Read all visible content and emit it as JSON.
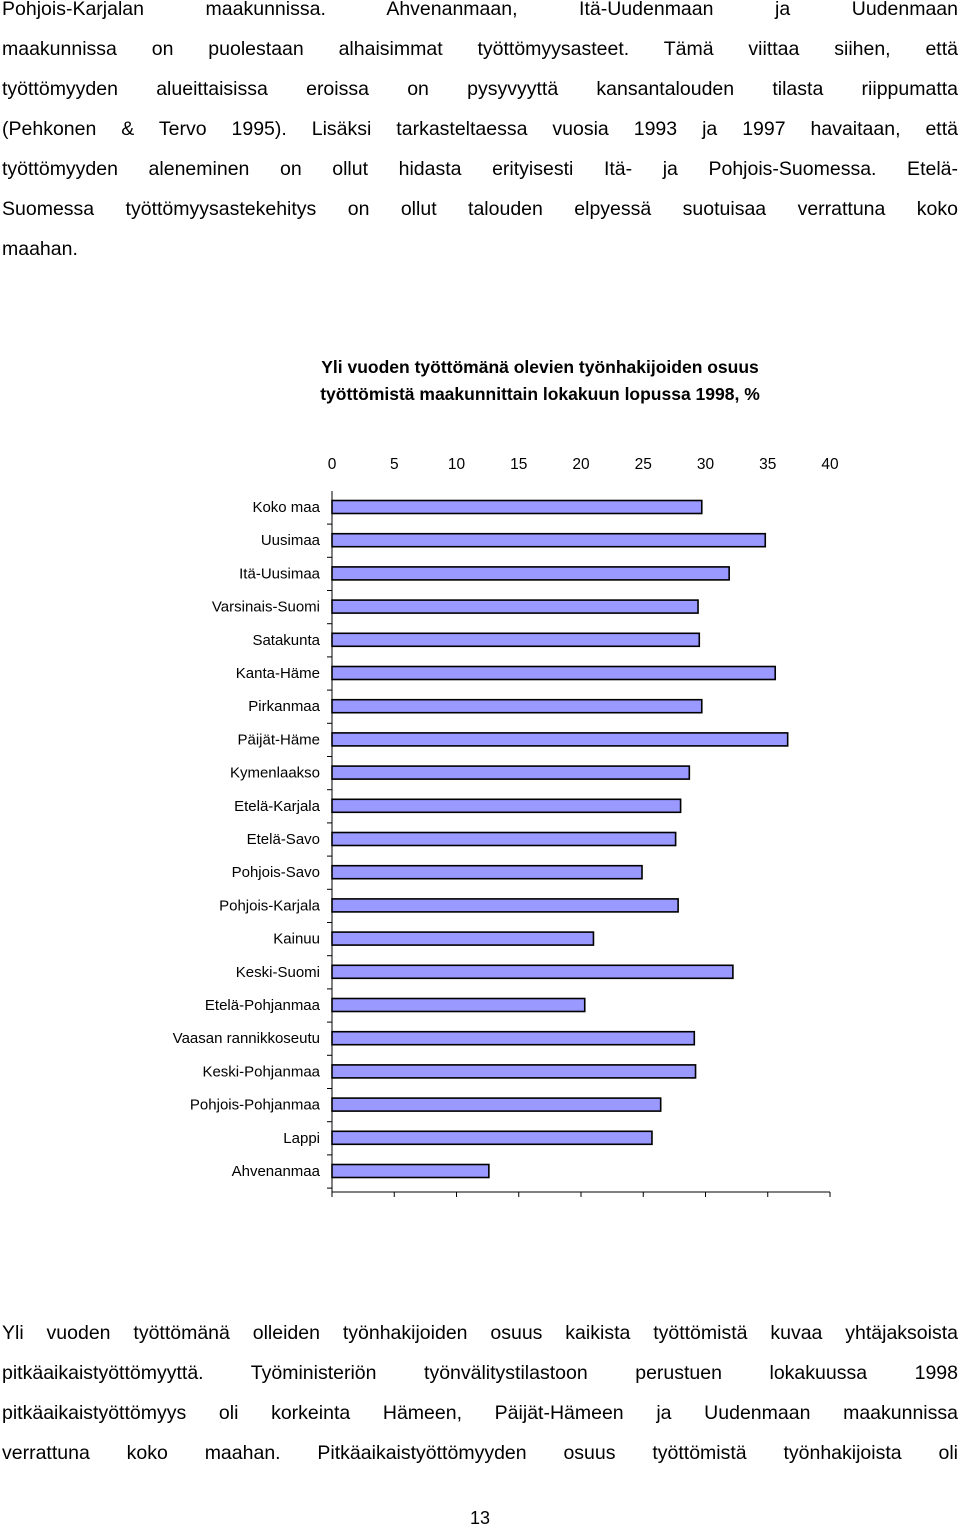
{
  "top_paragraph": {
    "lines": [
      "Pohjois-Karjalan maakunnissa. Ahvenanmaan, Itä-Uudenmaan ja Uudenmaan",
      "maakunnissa on puolestaan alhaisimmat työttömyysasteet. Tämä viittaa siihen, että",
      "työttömyyden alueittaisissa eroissa on pysyvyyttä kansantalouden tilasta riippumatta",
      "(Pehkonen & Tervo 1995). Lisäksi tarkasteltaessa vuosia 1993 ja 1997 havaitaan, että",
      "työttömyyden aleneminen on ollut hidasta erityisesti Itä- ja Pohjois-Suomessa. Etelä-",
      "Suomessa työttömyysastekehitys on ollut talouden elpyessä suotuisaa verrattuna koko",
      "maahan."
    ]
  },
  "chart_data": {
    "type": "bar",
    "orientation": "horizontal",
    "title": "Yli vuoden työttömänä olevien työnhakijoiden osuus työttömistä maakunnittain lokakuun lopussa 1998, %",
    "title_lines": [
      "Yli vuoden työttömänä olevien työnhakijoiden osuus",
      "työttömistä maakunnittain lokakuun lopussa 1998, %"
    ],
    "xlabel": "",
    "ylabel": "",
    "xlim": [
      0,
      40
    ],
    "ticks": [
      0,
      5,
      10,
      15,
      20,
      25,
      30,
      35,
      40
    ],
    "tick_position": "top",
    "grid": false,
    "legend": "none",
    "bar_color": "#9999ff",
    "bar_edge_color": "#000000",
    "categories": [
      "Koko maa",
      "Uusimaa",
      "Itä-Uusimaa",
      "Varsinais-Suomi",
      "Satakunta",
      "Kanta-Häme",
      "Pirkanmaa",
      "Päijät-Häme",
      "Kymenlaakso",
      "Etelä-Karjala",
      "Etelä-Savo",
      "Pohjois-Savo",
      "Pohjois-Karjala",
      "Kainuu",
      "Keski-Suomi",
      "Etelä-Pohjanmaa",
      "Vaasan rannikkoseutu",
      "Keski-Pohjanmaa",
      "Pohjois-Pohjanmaa",
      "Lappi",
      "Ahvenanmaa"
    ],
    "values": [
      29.7,
      34.8,
      31.9,
      29.4,
      29.5,
      35.6,
      29.7,
      36.6,
      28.7,
      28.0,
      27.6,
      24.9,
      27.8,
      21.0,
      32.2,
      20.3,
      29.1,
      29.2,
      26.4,
      25.7,
      12.6
    ]
  },
  "bottom_paragraph": {
    "lines": [
      "Yli vuoden työttömänä olleiden työnhakijoiden osuus kaikista työttömistä kuvaa yhtäjaksoista",
      "pitkäaikaistyöttömyyttä. Työministeriön työnvälitystilastoon perustuen lokakuussa 1998",
      "pitkäaikaistyöttömyys oli korkeinta Hämeen, Päijät-Hämeen ja Uudenmaan maakunnissa",
      "verrattuna koko maahan. Pitkäaikaistyöttömyyden osuus työttömistä työnhakijoista oli"
    ]
  },
  "page_number": "13"
}
